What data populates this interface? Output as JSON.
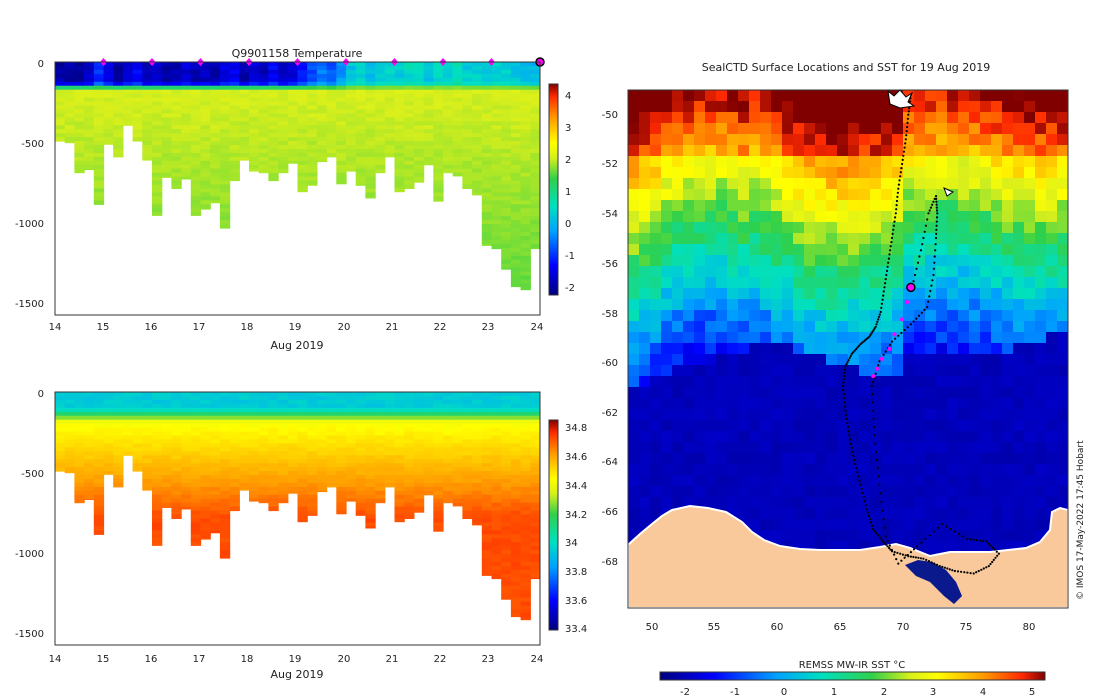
{
  "temperature_panel": {
    "title": "Q9901158  Temperature",
    "xlabel": "Aug 2019",
    "x_ticks": [
      "14",
      "15",
      "16",
      "17",
      "18",
      "19",
      "20",
      "21",
      "22",
      "23",
      "24"
    ],
    "y_ticks": [
      "0",
      "-500",
      "-1000",
      "-1500"
    ],
    "colorbar_ticks": [
      "4",
      "3",
      "2",
      "1",
      "0",
      "-1",
      "-2"
    ]
  },
  "salinity_panel": {
    "xlabel": "Aug 2019",
    "x_ticks": [
      "14",
      "15",
      "16",
      "17",
      "18",
      "19",
      "20",
      "21",
      "22",
      "23",
      "24"
    ],
    "y_ticks": [
      "0",
      "-500",
      "-1000",
      "-1500"
    ],
    "colorbar_ticks": [
      "34.8",
      "34.6",
      "34.4",
      "34.2",
      "34",
      "33.8",
      "33.6",
      "33.4"
    ]
  },
  "map_panel": {
    "title": "SealCTD Surface Locations and SST for 19 Aug 2019",
    "lat_ticks": [
      "-50",
      "-52",
      "-54",
      "-56",
      "-58",
      "-60",
      "-62",
      "-64",
      "-66",
      "-68"
    ],
    "lon_ticks": [
      "50",
      "55",
      "60",
      "65",
      "70",
      "75",
      "80"
    ],
    "colorbar_label": "REMSS MW-IR SST °C",
    "colorbar_ticks": [
      "-2",
      "-1",
      "0",
      "1",
      "2",
      "3",
      "4",
      "5"
    ]
  },
  "credit": "© IMOS 17-May-2022 17:45 Hobart",
  "colors": {
    "magenta": "#ff00ff",
    "ice_ocean": "#0a1a8c",
    "land": "#f9c99b"
  },
  "chart_data": [
    {
      "type": "heatmap",
      "name": "temperature-section",
      "title": "Q9901158  Temperature",
      "xlabel": "Aug 2019",
      "ylabel": "",
      "xlim": [
        14,
        24
      ],
      "ylim": [
        -1600,
        0
      ],
      "clim": [
        -2.3,
        4.5
      ],
      "profile_days": [
        14.1,
        14.3,
        14.5,
        14.7,
        14.9,
        15.1,
        15.3,
        15.5,
        15.7,
        15.9,
        16.1,
        16.3,
        16.5,
        16.7,
        16.9,
        17.1,
        17.3,
        17.5,
        17.7,
        17.9,
        18.1,
        18.3,
        18.5,
        18.7,
        18.9,
        19.1,
        19.3,
        19.5,
        19.7,
        19.9,
        20.1,
        20.3,
        20.5,
        20.7,
        20.9,
        21.1,
        21.3,
        21.5,
        21.7,
        21.9,
        22.1,
        22.3,
        22.5,
        22.7,
        22.9,
        23.1,
        23.3,
        23.5,
        23.7,
        23.9
      ],
      "profile_max_depth_m": [
        500,
        510,
        700,
        680,
        900,
        520,
        600,
        400,
        500,
        620,
        970,
        730,
        800,
        740,
        970,
        930,
        890,
        1050,
        750,
        620,
        690,
        700,
        750,
        700,
        640,
        820,
        780,
        630,
        600,
        770,
        690,
        780,
        860,
        700,
        600,
        820,
        800,
        760,
        650,
        880,
        700,
        720,
        800,
        840,
        1160,
        1180,
        1310,
        1420,
        1440,
        1180
      ],
      "surface_temp_c": [
        -2,
        -2,
        -2,
        -1.8,
        -1,
        -1.5,
        -2,
        -1.6,
        -1.4,
        -2,
        -1.8,
        -2,
        -1.9,
        -1.7,
        -1.9,
        -1.8,
        -2,
        -1.6,
        -1.5,
        -1.9,
        -1.6,
        -1.8,
        -1.4,
        -1.8,
        -1.6,
        -1.2,
        -0.8,
        -0.5,
        -0.8,
        -0.3,
        0.2,
        0.4,
        0.1,
        0.3,
        0.4,
        0.3,
        0.5,
        0.4,
        0.2,
        0.5,
        0.4,
        0.6,
        0.3,
        0.3,
        0.2,
        0.4,
        0.3,
        0.2,
        0.1,
        0
      ],
      "deep_temp_c": 1.9,
      "thermocline_depth_m": 160,
      "markers_day": [
        15,
        16,
        17,
        18,
        19,
        20,
        21,
        22,
        23
      ],
      "current_position_day": 24
    },
    {
      "type": "heatmap",
      "name": "salinity-section",
      "xlabel": "Aug 2019",
      "xlim": [
        14,
        24
      ],
      "ylim": [
        -1600,
        0
      ],
      "clim": [
        33.4,
        34.85
      ],
      "profile_days": [
        14.1,
        14.3,
        14.5,
        14.7,
        14.9,
        15.1,
        15.3,
        15.5,
        15.7,
        15.9,
        16.1,
        16.3,
        16.5,
        16.7,
        16.9,
        17.1,
        17.3,
        17.5,
        17.7,
        17.9,
        18.1,
        18.3,
        18.5,
        18.7,
        18.9,
        19.1,
        19.3,
        19.5,
        19.7,
        19.9,
        20.1,
        20.3,
        20.5,
        20.7,
        20.9,
        21.1,
        21.3,
        21.5,
        21.7,
        21.9,
        22.1,
        22.3,
        22.5,
        22.7,
        22.9,
        23.1,
        23.3,
        23.5,
        23.7,
        23.9
      ],
      "profile_max_depth_m": [
        500,
        510,
        700,
        680,
        900,
        520,
        600,
        400,
        500,
        620,
        970,
        730,
        800,
        740,
        970,
        930,
        890,
        1050,
        750,
        620,
        690,
        700,
        750,
        700,
        640,
        820,
        780,
        630,
        600,
        770,
        690,
        780,
        860,
        700,
        600,
        820,
        800,
        760,
        650,
        880,
        700,
        720,
        800,
        840,
        1160,
        1180,
        1310,
        1420,
        1440,
        1180
      ],
      "surface_salinity": 33.95,
      "deep_salinity": 34.72,
      "halocline_depth_m": 120
    },
    {
      "type": "scatter",
      "name": "seal-track-map",
      "title": "SealCTD Surface Locations and SST for 19 Aug 2019",
      "xlim": [
        48,
        83
      ],
      "ylim": [
        -70,
        -49
      ],
      "sst_clim": [
        -2.5,
        5.2
      ],
      "ice_edge_lat": -60.2,
      "current_location": [
        70.5,
        -57.0
      ],
      "highlight_locations": [
        [
          70.2,
          -57.6
        ],
        [
          69.8,
          -58.3
        ],
        [
          69.2,
          -58.9
        ],
        [
          68.8,
          -59.5
        ],
        [
          68.2,
          -59.9
        ],
        [
          67.8,
          -60.3
        ],
        [
          67.5,
          -60.6
        ]
      ],
      "track_locations": [
        [
          70.5,
          -49.2
        ],
        [
          70.3,
          -50
        ],
        [
          70.1,
          -51
        ],
        [
          69.8,
          -52
        ],
        [
          69.5,
          -53
        ],
        [
          69.3,
          -54
        ],
        [
          69,
          -55
        ],
        [
          68.7,
          -56
        ],
        [
          68.4,
          -57
        ],
        [
          68.1,
          -58
        ],
        [
          67.7,
          -58.6
        ],
        [
          67.2,
          -59
        ],
        [
          66.5,
          -59.3
        ],
        [
          65.8,
          -59.7
        ],
        [
          65.3,
          -60.2
        ],
        [
          65.1,
          -61
        ],
        [
          65.3,
          -62
        ],
        [
          65.6,
          -63
        ],
        [
          66,
          -64
        ],
        [
          66.5,
          -65
        ],
        [
          67,
          -66
        ],
        [
          67.5,
          -66.8
        ],
        [
          68.3,
          -67.3
        ],
        [
          69,
          -67.7
        ],
        [
          70.3,
          -67.9
        ],
        [
          71.5,
          -68
        ],
        [
          72.8,
          -68.3
        ],
        [
          74,
          -68.5
        ],
        [
          75.5,
          -68.6
        ],
        [
          76.7,
          -68.3
        ],
        [
          77.5,
          -67.8
        ],
        [
          76.5,
          -67.3
        ],
        [
          75,
          -67.2
        ],
        [
          73,
          -66.6
        ],
        [
          71,
          -67.5
        ],
        [
          69.5,
          -68.2
        ],
        [
          68.5,
          -67.1
        ],
        [
          68,
          -65
        ],
        [
          67.6,
          -63
        ],
        [
          67.4,
          -61
        ],
        [
          68,
          -60
        ],
        [
          69,
          -59.2
        ],
        [
          70.5,
          -58.5
        ],
        [
          71.8,
          -57.8
        ],
        [
          72.3,
          -56.5
        ],
        [
          72.5,
          -55
        ],
        [
          72.6,
          -54
        ],
        [
          72.5,
          -53.3
        ],
        [
          71.9,
          -54
        ],
        [
          71.3,
          -55.5
        ],
        [
          70.6,
          -57
        ]
      ]
    }
  ]
}
